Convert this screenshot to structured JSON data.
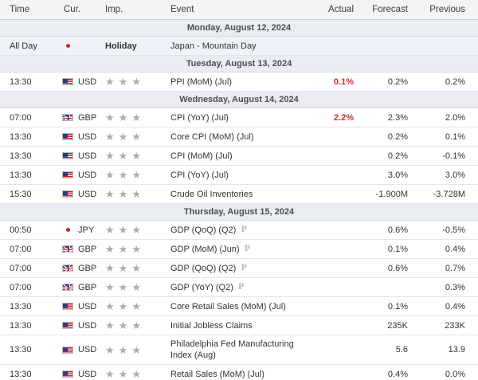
{
  "header": {
    "time": "Time",
    "cur": "Cur.",
    "imp": "Imp.",
    "event": "Event",
    "actual": "Actual",
    "forecast": "Forecast",
    "previous": "Previous"
  },
  "days": [
    {
      "label": "Monday, August 12, 2024",
      "rows": [
        {
          "time": "All Day",
          "flag": "jp",
          "cur": "",
          "imp": "Holiday",
          "event": "Japan - Mountain Day",
          "actual": "",
          "forecast": "",
          "previous": "",
          "holiday": true
        }
      ]
    },
    {
      "label": "Tuesday, August 13, 2024",
      "rows": [
        {
          "time": "13:30",
          "flag": "us",
          "cur": "USD",
          "event": "PPI (MoM) (Jul)",
          "actual": "0.1%",
          "actual_red": true,
          "forecast": "0.2%",
          "previous": "0.2%"
        }
      ]
    },
    {
      "label": "Wednesday, August 14, 2024",
      "rows": [
        {
          "time": "07:00",
          "flag": "gb",
          "cur": "GBP",
          "event": "CPI (YoY) (Jul)",
          "actual": "2.2%",
          "actual_red": true,
          "forecast": "2.3%",
          "previous": "2.0%"
        },
        {
          "time": "13:30",
          "flag": "us",
          "cur": "USD",
          "event": "Core CPI (MoM) (Jul)",
          "actual": "",
          "forecast": "0.2%",
          "previous": "0.1%"
        },
        {
          "time": "13:30",
          "flag": "us",
          "cur": "USD",
          "event": "CPI (MoM) (Jul)",
          "actual": "",
          "forecast": "0.2%",
          "previous": "-0.1%"
        },
        {
          "time": "13:30",
          "flag": "us",
          "cur": "USD",
          "event": "CPI (YoY) (Jul)",
          "actual": "",
          "forecast": "3.0%",
          "previous": "3.0%"
        },
        {
          "time": "15:30",
          "flag": "us",
          "cur": "USD",
          "event": "Crude Oil Inventories",
          "actual": "",
          "forecast": "-1.900M",
          "previous": "-3.728M"
        }
      ]
    },
    {
      "label": "Thursday, August 15, 2024",
      "rows": [
        {
          "time": "00:50",
          "flag": "jp",
          "cur": "JPY",
          "event": "GDP (QoQ) (Q2)",
          "prelim": "P",
          "actual": "",
          "forecast": "0.6%",
          "previous": "-0.5%"
        },
        {
          "time": "07:00",
          "flag": "gb",
          "cur": "GBP",
          "event": "GDP (MoM) (Jun)",
          "prelim": "P",
          "actual": "",
          "forecast": "0.1%",
          "previous": "0.4%"
        },
        {
          "time": "07:00",
          "flag": "gb",
          "cur": "GBP",
          "event": "GDP (QoQ) (Q2)",
          "prelim": "P",
          "actual": "",
          "forecast": "0.6%",
          "previous": "0.7%"
        },
        {
          "time": "07:00",
          "flag": "gb",
          "cur": "GBP",
          "event": "GDP (YoY) (Q2)",
          "prelim": "P",
          "actual": "",
          "forecast": "",
          "previous": "0.3%"
        },
        {
          "time": "13:30",
          "flag": "us",
          "cur": "USD",
          "event": "Core Retail Sales (MoM) (Jul)",
          "actual": "",
          "forecast": "0.1%",
          "previous": "0.4%"
        },
        {
          "time": "13:30",
          "flag": "us",
          "cur": "USD",
          "event": "Initial Jobless Claims",
          "actual": "",
          "forecast": "235K",
          "previous": "233K"
        },
        {
          "time": "13:30",
          "flag": "us",
          "cur": "USD",
          "event": "Philadelphia Fed Manufacturing Index (Aug)",
          "actual": "",
          "forecast": "5.6",
          "previous": "13.9",
          "tall": true
        },
        {
          "time": "13:30",
          "flag": "us",
          "cur": "USD",
          "event": "Retail Sales (MoM) (Jul)",
          "actual": "",
          "forecast": "0.4%",
          "previous": "0.0%"
        }
      ]
    }
  ],
  "star_glyph": "★",
  "colors": {
    "accent_red": "#e0262f",
    "star": "#a8acb2",
    "daybar": "#e9ecf1",
    "holiday_row": "#eef3fa"
  },
  "icons": {
    "us": "us-flag-icon",
    "gb": "gb-flag-icon",
    "jp": "jp-flag-icon",
    "star": "star-icon",
    "prelim": "preliminary-p-icon"
  }
}
